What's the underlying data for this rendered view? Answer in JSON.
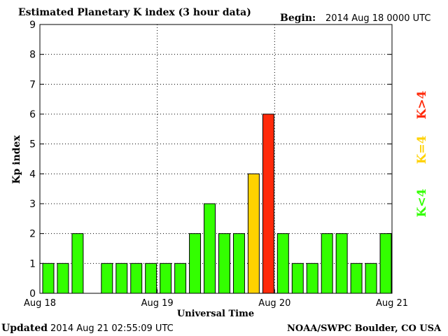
{
  "header": {
    "title": "Estimated Planetary K index (3 hour data)",
    "begin_label": "Begin:",
    "begin_value": "2014 Aug 18 0000 UTC"
  },
  "footer": {
    "updated_label": "Updated",
    "updated_value": "2014 Aug 21 02:55:09 UTC",
    "source": "NOAA/SWPC Boulder, CO USA"
  },
  "legend": {
    "low": "K<4",
    "mid": "K=4",
    "high": "K>4",
    "colors": {
      "low": "#33ff00",
      "mid": "#ffd200",
      "high": "#ff2a0a"
    }
  },
  "chart_data": {
    "type": "bar",
    "title": "Estimated Planetary K index (3 hour data)",
    "xlabel": "Universal Time",
    "ylabel": "Kp index",
    "ylim": [
      0,
      9
    ],
    "yticks": [
      0,
      1,
      2,
      3,
      4,
      5,
      6,
      7,
      8,
      9
    ],
    "xticks": [
      "Aug 18",
      "Aug 19",
      "Aug 20",
      "Aug 21"
    ],
    "interval_hours": 3,
    "grid": true,
    "values": [
      1,
      1,
      2,
      0,
      1,
      1,
      1,
      1,
      1,
      1,
      2,
      3,
      2,
      2,
      4,
      6,
      2,
      1,
      1,
      2,
      2,
      1,
      1,
      2
    ]
  }
}
